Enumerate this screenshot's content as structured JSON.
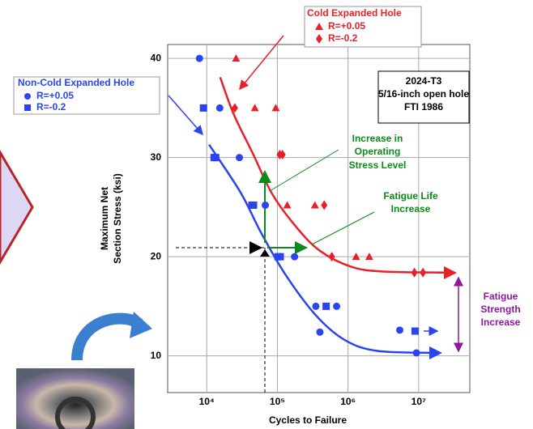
{
  "chart_data": {
    "type": "scatter",
    "x_label": "Cycles to Failure",
    "y_label": [
      "Maximum Net",
      "Section Stress (ksi)"
    ],
    "xscale": "log",
    "xlim": [
      2800,
      53000000
    ],
    "ylim": [
      6.3,
      41.4
    ],
    "xticks": [
      {
        "value": 10000,
        "label": "10⁴"
      },
      {
        "value": 100000,
        "label": "10⁵"
      },
      {
        "value": 1000000,
        "label": "10⁶"
      },
      {
        "value": 10000000,
        "label": "10⁷"
      }
    ],
    "yticks": [
      10,
      20,
      30,
      40
    ],
    "grid": true,
    "groups": [
      {
        "name": "Non-Cold Expanded Hole",
        "color": "#2a45f0",
        "curve": {
          "x": [
            10800,
            30000,
            59000,
            130000,
            350000,
            900000,
            2600000,
            17000000
          ],
          "y": [
            31.3,
            26.5,
            22.4,
            18.2,
            14.1,
            11.6,
            10.5,
            10.3
          ]
        },
        "series": [
          {
            "name": "R=+0.05",
            "marker": "circle",
            "x": [
              7900,
              15300,
              29000,
              67500,
              175000,
              350000,
              400000,
              690000,
              5400000,
              9300000
            ],
            "values": [
              40,
              35,
              30,
              25.2,
              20,
              15,
              12.4,
              15,
              12.6,
              10.3
            ]
          },
          {
            "name": "R=-0.2",
            "marker": "square",
            "x": [
              9000,
              12700,
              13400,
              43700,
              46000,
              102000,
              110000,
              490000,
              8900000
            ],
            "values": [
              35,
              30,
              30,
              25.2,
              25.2,
              20,
              20,
              15,
              12.5
            ]
          }
        ]
      },
      {
        "name": "Cold Expanded Hole",
        "color": "#e8202a",
        "curve": {
          "x": [
            15500,
            24000,
            45000,
            85000,
            185000,
            400000,
            1100000,
            3200000,
            26000000
          ],
          "y": [
            38.1,
            34.4,
            30.4,
            26.3,
            23,
            20.6,
            19,
            18.5,
            18.4
          ]
        },
        "series": [
          {
            "name": "R=+0.05",
            "marker": "triangle",
            "x": [
              26000,
              48000,
              95000,
              138000,
              340000,
              1300000,
              2000000
            ],
            "values": [
              40,
              35,
              35,
              25.2,
              25.2,
              20,
              20
            ]
          },
          {
            "name": "R=-0.2",
            "marker": "diamond",
            "x": [
              25000,
              108000,
              118000,
              460000,
              590000,
              8700000,
              11500000
            ],
            "values": [
              35,
              30.3,
              30.3,
              25.2,
              20,
              18.4,
              18.4
            ]
          }
        ]
      }
    ],
    "info_box": [
      "2024-T3",
      "5/16-inch open hole",
      "FTI 1986"
    ],
    "annotations": {
      "stress": [
        "Increase in",
        "Operating",
        "Stress Level"
      ],
      "life": [
        "Fatigue Life",
        "Increase"
      ],
      "strength": [
        "Fatigue",
        "Strength",
        "Increase"
      ]
    }
  }
}
